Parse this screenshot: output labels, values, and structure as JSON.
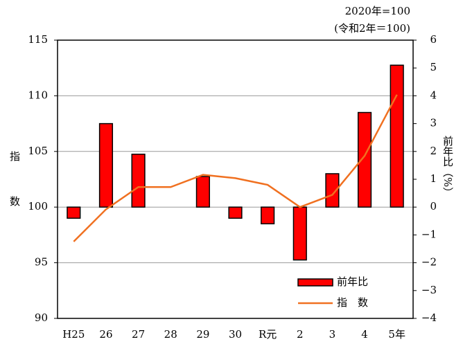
{
  "chart_data": {
    "type": "bar",
    "note_lines": [
      "2020年=100",
      "(令和2年＝100)"
    ],
    "ylabel": "指数",
    "y2label": "前年比（%）",
    "categories": [
      "H25",
      "26",
      "27",
      "28",
      "29",
      "30",
      "R元",
      "2",
      "3",
      "4",
      "5年"
    ],
    "series": [
      {
        "name": "前年比",
        "type": "bar",
        "axis": "y2",
        "color": "#ff0000",
        "values": [
          -0.4,
          3.0,
          1.9,
          0,
          1.1,
          -0.4,
          -0.6,
          -1.9,
          1.2,
          3.4,
          5.1
        ]
      },
      {
        "name": "指　数",
        "type": "line",
        "axis": "y",
        "color": "#f07020",
        "values": [
          96.9,
          99.8,
          101.8,
          101.8,
          102.9,
          102.6,
          102.0,
          100.0,
          101.1,
          104.6,
          110.1
        ]
      }
    ],
    "ylim": [
      90,
      115
    ],
    "yticks": [
      90,
      95,
      100,
      105,
      110,
      115
    ],
    "y2lim": [
      -4,
      6
    ],
    "y2ticks": [
      {
        "value": -4,
        "label": "−4"
      },
      {
        "value": -3,
        "label": "−3"
      },
      {
        "value": -2,
        "label": "−2"
      },
      {
        "value": -1,
        "label": "−1"
      },
      0,
      1,
      2,
      3,
      4,
      5,
      6
    ],
    "grid": true
  }
}
